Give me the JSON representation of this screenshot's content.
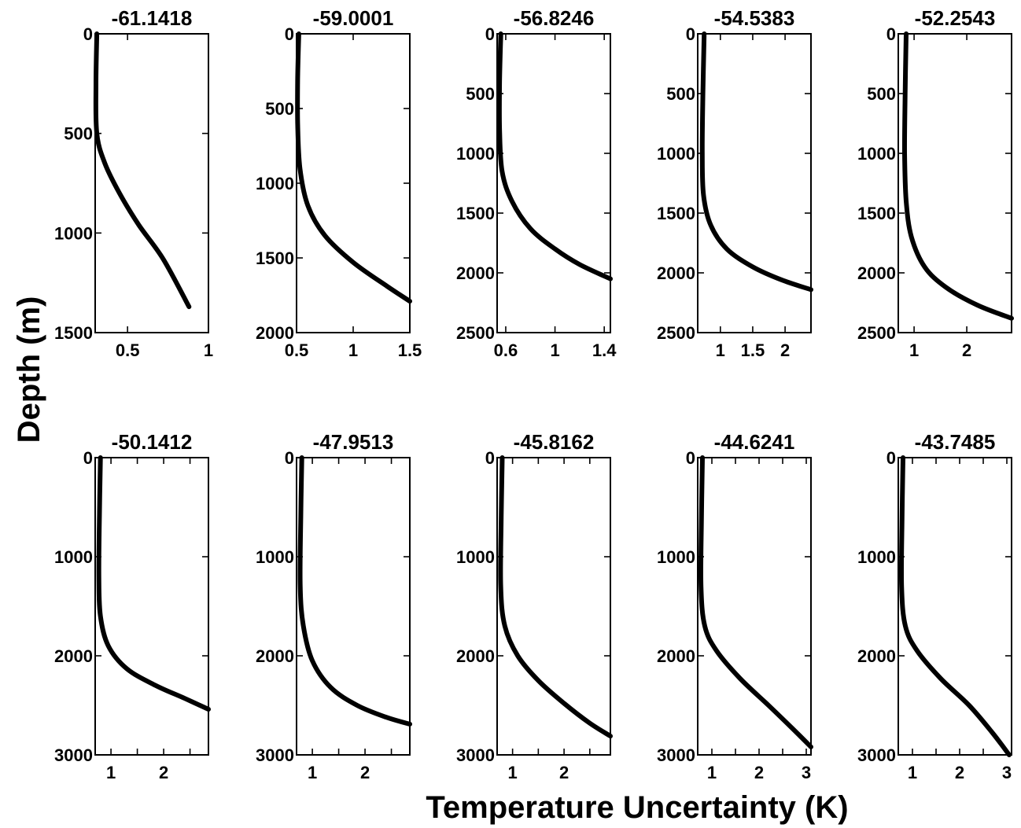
{
  "figure": {
    "ylabel": "Depth (m)",
    "xlabel": "Temperature Uncertainty (K)"
  },
  "chart_data": [
    {
      "type": "line",
      "title": "-61.1418",
      "xlim": [
        0.3,
        1.0
      ],
      "ylim": [
        0,
        1500
      ],
      "y_inverted": true,
      "xticks": [
        0.5,
        1
      ],
      "xtick_labels": [
        "0.5",
        "1"
      ],
      "yticks": [
        0,
        500,
        1000,
        1500
      ],
      "ytick_labels": [
        "0",
        "500",
        "1000",
        "1500"
      ],
      "x": [
        0.31,
        0.305,
        0.31,
        0.36,
        0.45,
        0.57,
        0.72,
        0.88
      ],
      "y": [
        0,
        250,
        500,
        650,
        800,
        960,
        1130,
        1370
      ]
    },
    {
      "type": "line",
      "title": "-59.0001",
      "xlim": [
        0.5,
        1.5
      ],
      "ylim": [
        0,
        2000
      ],
      "y_inverted": true,
      "xticks": [
        0.5,
        1,
        1.5
      ],
      "xtick_labels": [
        "0.5",
        "1",
        "1.5"
      ],
      "yticks": [
        0,
        500,
        1000,
        1500,
        2000
      ],
      "ytick_labels": [
        "0",
        "500",
        "1000",
        "1500",
        "2000"
      ],
      "x": [
        0.52,
        0.51,
        0.51,
        0.53,
        0.6,
        0.75,
        1.0,
        1.3,
        1.5
      ],
      "y": [
        0,
        300,
        600,
        900,
        1150,
        1350,
        1530,
        1690,
        1790
      ]
    },
    {
      "type": "line",
      "title": "-56.8246",
      "xlim": [
        0.53,
        1.45
      ],
      "ylim": [
        0,
        2500
      ],
      "y_inverted": true,
      "xticks": [
        0.6,
        1,
        1.4
      ],
      "xtick_labels": [
        "0.6",
        "1",
        "1.4"
      ],
      "yticks": [
        0,
        500,
        1000,
        1500,
        2000,
        2500
      ],
      "ytick_labels": [
        "0",
        "500",
        "1000",
        "1500",
        "2000",
        "2500"
      ],
      "x": [
        0.56,
        0.55,
        0.55,
        0.57,
        0.65,
        0.8,
        1.0,
        1.2,
        1.45
      ],
      "y": [
        0,
        400,
        800,
        1150,
        1400,
        1630,
        1800,
        1930,
        2050
      ]
    },
    {
      "type": "line",
      "title": "-54.5383",
      "xlim": [
        0.65,
        2.4
      ],
      "ylim": [
        0,
        2500
      ],
      "y_inverted": true,
      "xticks": [
        1,
        1.5,
        2
      ],
      "xtick_labels": [
        "1",
        "1.5",
        "2"
      ],
      "yticks": [
        0,
        500,
        1000,
        1500,
        2000,
        2500
      ],
      "ytick_labels": [
        "0",
        "500",
        "1000",
        "1500",
        "2000",
        "2500"
      ],
      "x": [
        0.75,
        0.73,
        0.72,
        0.74,
        0.85,
        1.1,
        1.5,
        1.95,
        2.4
      ],
      "y": [
        0,
        500,
        1000,
        1350,
        1600,
        1800,
        1950,
        2060,
        2140
      ]
    },
    {
      "type": "line",
      "title": "-52.2543",
      "xlim": [
        0.7,
        2.85
      ],
      "ylim": [
        0,
        2500
      ],
      "y_inverted": true,
      "xticks": [
        1,
        2
      ],
      "xtick_labels": [
        "1",
        "2"
      ],
      "yticks": [
        0,
        500,
        1000,
        1500,
        2000,
        2500
      ],
      "ytick_labels": [
        "0",
        "500",
        "1000",
        "1500",
        "2000",
        "2500"
      ],
      "x": [
        0.85,
        0.83,
        0.82,
        0.85,
        0.95,
        1.2,
        1.6,
        2.2,
        2.85
      ],
      "y": [
        0,
        500,
        1000,
        1400,
        1700,
        1950,
        2120,
        2270,
        2380
      ]
    },
    {
      "type": "line",
      "title": "-50.1412",
      "xlim": [
        0.7,
        2.85
      ],
      "ylim": [
        0,
        3000
      ],
      "y_inverted": true,
      "xticks": [
        1,
        1.5,
        2,
        2.5
      ],
      "xtick_labels": [
        "1",
        "",
        "2",
        ""
      ],
      "yticks": [
        0,
        1000,
        2000,
        3000
      ],
      "ytick_labels": [
        "0",
        "1000",
        "2000",
        "3000"
      ],
      "x": [
        0.8,
        0.78,
        0.77,
        0.8,
        0.95,
        1.3,
        1.85,
        2.4,
        2.85
      ],
      "y": [
        0,
        600,
        1200,
        1600,
        1900,
        2130,
        2300,
        2430,
        2540
      ]
    },
    {
      "type": "line",
      "title": "-47.9513",
      "xlim": [
        0.7,
        2.85
      ],
      "ylim": [
        0,
        3000
      ],
      "y_inverted": true,
      "xticks": [
        1,
        1.5,
        2,
        2.5
      ],
      "xtick_labels": [
        "1",
        "",
        "2",
        ""
      ],
      "yticks": [
        0,
        1000,
        2000,
        3000
      ],
      "ytick_labels": [
        "0",
        "1000",
        "2000",
        "3000"
      ],
      "x": [
        0.8,
        0.78,
        0.77,
        0.83,
        1.0,
        1.35,
        1.85,
        2.4,
        2.85
      ],
      "y": [
        0,
        600,
        1300,
        1700,
        2050,
        2320,
        2500,
        2620,
        2690
      ]
    },
    {
      "type": "line",
      "title": "-45.8162",
      "xlim": [
        0.7,
        2.9
      ],
      "ylim": [
        0,
        3000
      ],
      "y_inverted": true,
      "xticks": [
        1,
        1.5,
        2,
        2.5
      ],
      "xtick_labels": [
        "1",
        "",
        "2",
        ""
      ],
      "yticks": [
        0,
        1000,
        2000,
        3000
      ],
      "ytick_labels": [
        "0",
        "1000",
        "2000",
        "3000"
      ],
      "x": [
        0.8,
        0.78,
        0.77,
        0.85,
        1.1,
        1.5,
        2.0,
        2.5,
        2.9
      ],
      "y": [
        0,
        600,
        1300,
        1700,
        2000,
        2250,
        2480,
        2680,
        2810
      ]
    },
    {
      "type": "line",
      "title": "-44.6241",
      "xlim": [
        0.7,
        3.1
      ],
      "ylim": [
        0,
        3000
      ],
      "y_inverted": true,
      "xticks": [
        1,
        1.5,
        2,
        2.5,
        3
      ],
      "xtick_labels": [
        "1",
        "",
        "2",
        "",
        "3"
      ],
      "yticks": [
        0,
        1000,
        2000,
        3000
      ],
      "ytick_labels": [
        "0",
        "1000",
        "2000",
        "3000"
      ],
      "x": [
        0.8,
        0.78,
        0.77,
        0.85,
        1.1,
        1.6,
        2.2,
        2.7,
        3.1
      ],
      "y": [
        0,
        600,
        1300,
        1700,
        1950,
        2230,
        2500,
        2730,
        2920
      ]
    },
    {
      "type": "line",
      "title": "-43.7485",
      "xlim": [
        0.7,
        3.1
      ],
      "ylim": [
        0,
        3000
      ],
      "y_inverted": true,
      "xticks": [
        1,
        1.5,
        2,
        2.5,
        3
      ],
      "xtick_labels": [
        "1",
        "",
        "2",
        "",
        "3"
      ],
      "yticks": [
        0,
        1000,
        2000,
        3000
      ],
      "ytick_labels": [
        "0",
        "1000",
        "2000",
        "3000"
      ],
      "x": [
        0.8,
        0.78,
        0.77,
        0.85,
        1.1,
        1.6,
        2.2,
        2.7,
        3.05
      ],
      "y": [
        0,
        600,
        1300,
        1700,
        1950,
        2230,
        2500,
        2780,
        3000
      ]
    }
  ]
}
